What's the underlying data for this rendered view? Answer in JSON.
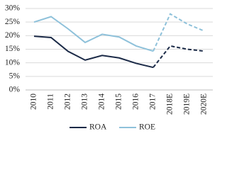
{
  "chart_data": {
    "type": "line",
    "categories": [
      "2010",
      "2011",
      "2012",
      "2013",
      "2014",
      "2015",
      "2016",
      "2017",
      "2018E",
      "2019E",
      "2020E"
    ],
    "series": [
      {
        "name": "ROA",
        "color": "#1b2a47",
        "values": [
          19.8,
          19.3,
          14.2,
          11,
          12.7,
          11.8,
          9.8,
          8.3,
          16.2,
          15,
          14.3
        ]
      },
      {
        "name": "ROE",
        "color": "#8ec1da",
        "values": [
          25,
          27,
          22.5,
          17.5,
          20.5,
          19.5,
          16.2,
          14.3,
          28,
          24.3,
          21.7
        ]
      }
    ],
    "ylim": [
      0,
      30
    ],
    "yticks": [
      {
        "value": 0,
        "label": "0%"
      },
      {
        "value": 5,
        "label": "5%"
      },
      {
        "value": 10,
        "label": "10%"
      },
      {
        "value": 15,
        "label": "15%"
      },
      {
        "value": 20,
        "label": "20%"
      },
      {
        "value": 25,
        "label": "25%"
      },
      {
        "value": 30,
        "label": "30%"
      }
    ],
    "grid": true,
    "legend": "bottom"
  }
}
